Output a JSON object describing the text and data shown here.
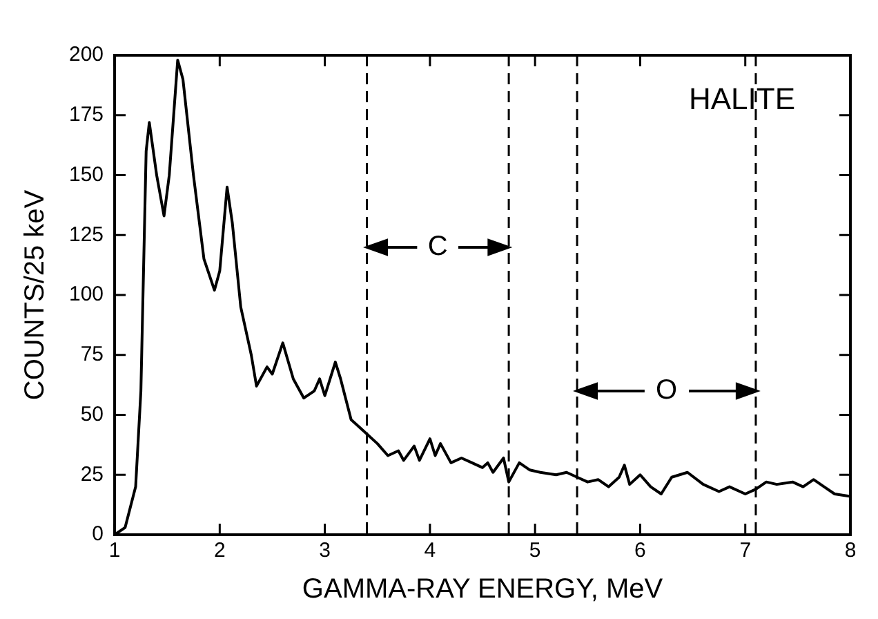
{
  "chart_data": {
    "type": "line",
    "xlabel": "GAMMA-RAY ENERGY, MeV",
    "ylabel": "COUNTS/25 keV",
    "annotations": [
      "HALITE",
      "C",
      "O"
    ],
    "series": [
      {
        "color": "#000000",
        "x": [
          1.0,
          1.1,
          1.2,
          1.25,
          1.3,
          1.33,
          1.4,
          1.47,
          1.52,
          1.6,
          1.65,
          1.75,
          1.85,
          1.95,
          2.0,
          2.07,
          2.12,
          2.2,
          2.3,
          2.35,
          2.45,
          2.5,
          2.6,
          2.7,
          2.8,
          2.9,
          2.95,
          3.0,
          3.1,
          3.15,
          3.25,
          3.35,
          3.5,
          3.6,
          3.7,
          3.75,
          3.85,
          3.9,
          4.0,
          4.05,
          4.1,
          4.2,
          4.3,
          4.4,
          4.5,
          4.55,
          4.6,
          4.7,
          4.75,
          4.85,
          4.95,
          5.05,
          5.2,
          5.3,
          5.4,
          5.5,
          5.6,
          5.7,
          5.8,
          5.85,
          5.9,
          6.0,
          6.1,
          6.2,
          6.3,
          6.45,
          6.6,
          6.75,
          6.85,
          7.0,
          7.1,
          7.2,
          7.3,
          7.45,
          7.55,
          7.65,
          7.75,
          7.85,
          8.0
        ],
        "values": [
          0,
          3,
          20,
          60,
          160,
          172,
          150,
          133,
          150,
          198,
          190,
          150,
          115,
          102,
          110,
          145,
          130,
          95,
          75,
          62,
          70,
          67,
          80,
          65,
          57,
          60,
          65,
          58,
          72,
          65,
          48,
          44,
          38,
          33,
          35,
          31,
          37,
          31,
          40,
          33,
          38,
          30,
          32,
          30,
          28,
          30,
          26,
          32,
          22,
          30,
          27,
          26,
          25,
          26,
          24,
          22,
          23,
          20,
          24,
          29,
          21,
          25,
          20,
          17,
          24,
          26,
          21,
          18,
          20,
          17,
          19,
          22,
          21,
          22,
          20,
          23,
          20,
          17,
          16
        ]
      }
    ],
    "ref_lines": [
      {
        "axis": "x",
        "value": 3.4,
        "line_style": "dashed"
      },
      {
        "axis": "x",
        "value": 4.75,
        "line_style": "dashed"
      },
      {
        "axis": "x",
        "value": 5.4,
        "line_style": "dashed"
      },
      {
        "axis": "x",
        "value": 7.1,
        "line_style": "dashed"
      }
    ],
    "xlim": [
      1,
      8
    ],
    "xticks": [
      1,
      2,
      3,
      4,
      5,
      6,
      7,
      8
    ],
    "ylim": [
      0,
      200
    ],
    "yticks": [
      0,
      25,
      50,
      75,
      100,
      125,
      150,
      175,
      200
    ],
    "grid": false,
    "legend": false,
    "marker": "none",
    "line_style": "solid"
  }
}
